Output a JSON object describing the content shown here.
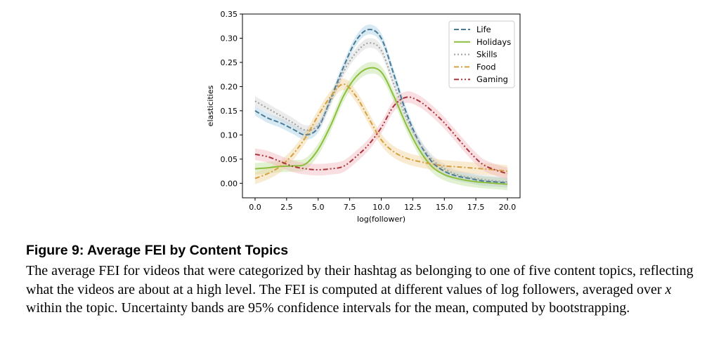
{
  "chart_data": {
    "type": "line",
    "title": "",
    "xlabel": "log(follower)",
    "ylabel": "elasticities",
    "xlim": [
      -1,
      21
    ],
    "ylim": [
      -0.03,
      0.35
    ],
    "xticks": [
      0.0,
      2.5,
      5.0,
      7.5,
      10.0,
      12.5,
      15.0,
      17.5,
      20.0
    ],
    "yticks": [
      0.0,
      0.05,
      0.1,
      0.15,
      0.2,
      0.25,
      0.3,
      0.35
    ],
    "xtick_labels": [
      "0.0",
      "2.5",
      "5.0",
      "7.5",
      "10.0",
      "12.5",
      "15.0",
      "17.5",
      "20.0"
    ],
    "ytick_labels": [
      "0.00",
      "0.05",
      "0.10",
      "0.15",
      "0.20",
      "0.25",
      "0.30",
      "0.35"
    ],
    "legend_position": "top-right",
    "grid": false,
    "x": [
      0,
      1,
      2,
      3,
      4,
      5,
      6,
      7,
      8,
      9,
      10,
      11,
      12,
      13,
      14,
      15,
      16,
      17,
      18,
      19,
      20
    ],
    "series": [
      {
        "name": "Life",
        "color": "#4a7a96",
        "dash": "dashed",
        "values": [
          0.15,
          0.135,
          0.125,
          0.112,
          0.1,
          0.115,
          0.175,
          0.24,
          0.295,
          0.318,
          0.3,
          0.225,
          0.145,
          0.085,
          0.045,
          0.025,
          0.015,
          0.01,
          0.005,
          0.003,
          0.001
        ],
        "band": 0.01,
        "band_color": "#a6cfe3"
      },
      {
        "name": "Holidays",
        "color": "#8bbf3c",
        "dash": "solid",
        "values": [
          0.03,
          0.032,
          0.035,
          0.036,
          0.04,
          0.07,
          0.12,
          0.18,
          0.22,
          0.238,
          0.23,
          0.18,
          0.12,
          0.07,
          0.035,
          0.018,
          0.01,
          0.005,
          0.002,
          0.0,
          -0.002
        ],
        "band": 0.012,
        "band_color": "#bfe09a"
      },
      {
        "name": "Skills",
        "color": "#a0a0a0",
        "dash": "dotted",
        "values": [
          0.17,
          0.155,
          0.14,
          0.125,
          0.11,
          0.12,
          0.17,
          0.23,
          0.27,
          0.29,
          0.275,
          0.205,
          0.135,
          0.085,
          0.05,
          0.03,
          0.018,
          0.012,
          0.008,
          0.005,
          0.003
        ],
        "band": 0.01,
        "band_color": "#d4d4d4"
      },
      {
        "name": "Food",
        "color": "#d4a040",
        "dash": "dashdot",
        "values": [
          0.01,
          0.02,
          0.035,
          0.06,
          0.095,
          0.14,
          0.18,
          0.205,
          0.18,
          0.135,
          0.09,
          0.065,
          0.052,
          0.045,
          0.04,
          0.036,
          0.034,
          0.032,
          0.03,
          0.028,
          0.025
        ],
        "band": 0.012,
        "band_color": "#f0d29a"
      },
      {
        "name": "Gaming",
        "color": "#a8363e",
        "dash": "dashdotdot",
        "values": [
          0.06,
          0.055,
          0.045,
          0.035,
          0.03,
          0.028,
          0.03,
          0.035,
          0.055,
          0.08,
          0.115,
          0.16,
          0.178,
          0.17,
          0.15,
          0.125,
          0.095,
          0.065,
          0.04,
          0.028,
          0.02
        ],
        "band": 0.012,
        "band_color": "#f2b8bd"
      }
    ]
  },
  "caption": {
    "title": "Figure 9: Average FEI by Content Topics",
    "body_before_var": "The average FEI for videos that were categorized by their hashtag as belonging to one of five content topics, reflecting what the videos are about at a high level. The FEI is computed at different values of log followers, averaged over ",
    "body_var": "x",
    "body_after_var": " within the topic. Uncertainty bands are 95% confidence intervals for the mean, computed by bootstrapping."
  }
}
